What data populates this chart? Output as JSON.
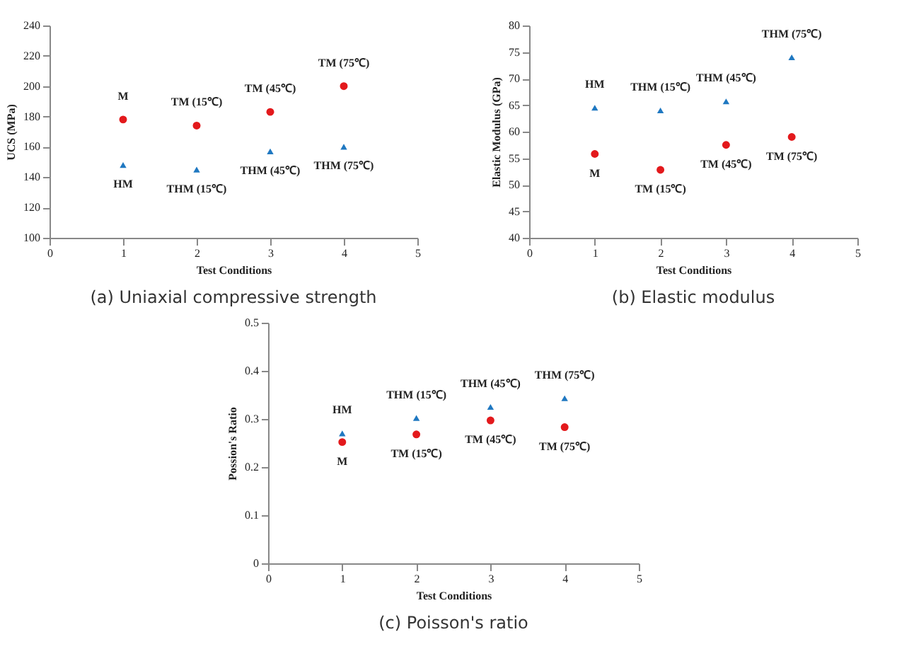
{
  "chart_data": [
    {
      "type": "scatter",
      "title": "(a) Uniaxial compressive strength",
      "xlabel": "Test Conditions",
      "ylabel": "UCS (MPa)",
      "x": [
        1,
        2,
        3,
        4
      ],
      "xlim": [
        0,
        5
      ],
      "xticks": [
        0,
        1,
        2,
        3,
        4,
        5
      ],
      "ylim": [
        100,
        240
      ],
      "yticks": [
        100,
        120,
        140,
        160,
        180,
        200,
        220,
        240
      ],
      "grid": false,
      "series": [
        {
          "color": "#e3191c",
          "marker": "circle",
          "values": [
            178,
            174,
            183,
            200
          ]
        },
        {
          "color": "#1f78c1",
          "marker": "triangle",
          "values": [
            148,
            145,
            157,
            160
          ]
        }
      ],
      "annotations": [
        {
          "text": "M",
          "x": 1,
          "y": 178
        },
        {
          "text": "TM (15℃)",
          "x": 2,
          "y": 174
        },
        {
          "text": "TM (45℃)",
          "x": 3,
          "y": 183
        },
        {
          "text": "TM (75℃)",
          "x": 4,
          "y": 200
        },
        {
          "text": "HM",
          "x": 1,
          "y": 148
        },
        {
          "text": "THM (15℃)",
          "x": 2,
          "y": 145
        },
        {
          "text": "THM (45℃)",
          "x": 3,
          "y": 157
        },
        {
          "text": "THM (75℃)",
          "x": 4,
          "y": 160
        }
      ]
    },
    {
      "type": "scatter",
      "title": "(b) Elastic modulus",
      "xlabel": "Test Conditions",
      "ylabel": "Elastic Modulus (GPa)",
      "x": [
        1,
        2,
        3,
        4
      ],
      "xlim": [
        0,
        5
      ],
      "xticks": [
        0,
        1,
        2,
        3,
        4,
        5
      ],
      "ylim": [
        40,
        80
      ],
      "yticks": [
        40,
        45,
        50,
        55,
        60,
        65,
        70,
        75,
        80
      ],
      "grid": false,
      "series": [
        {
          "color": "#e3191c",
          "marker": "circle",
          "values": [
            55.8,
            52.8,
            57.5,
            59
          ]
        },
        {
          "color": "#1f78c1",
          "marker": "triangle",
          "values": [
            64.5,
            64,
            65.7,
            74
          ]
        }
      ],
      "annotations": [
        {
          "text": "M",
          "x": 1,
          "y": 55.8
        },
        {
          "text": "TM (15℃)",
          "x": 2,
          "y": 52.8
        },
        {
          "text": "TM (45℃)",
          "x": 3,
          "y": 57.5
        },
        {
          "text": "TM (75℃)",
          "x": 4,
          "y": 59
        },
        {
          "text": "HM",
          "x": 1,
          "y": 64.5
        },
        {
          "text": "THM (15℃)",
          "x": 2,
          "y": 64
        },
        {
          "text": "THM (45℃)",
          "x": 3,
          "y": 65.7
        },
        {
          "text": "THM (75℃)",
          "x": 4,
          "y": 74
        }
      ]
    },
    {
      "type": "scatter",
      "title": "(c) Poisson's ratio",
      "xlabel": "Test Conditions",
      "ylabel": "Possion's Ratio",
      "x": [
        1,
        2,
        3,
        4
      ],
      "xlim": [
        0,
        5
      ],
      "xticks": [
        0,
        1,
        2,
        3,
        4,
        5
      ],
      "ylim": [
        0,
        0.5
      ],
      "yticks": [
        0,
        0.1,
        0.2,
        0.3,
        0.4,
        0.5
      ],
      "grid": false,
      "series": [
        {
          "color": "#e3191c",
          "marker": "circle",
          "values": [
            0.252,
            0.268,
            0.297,
            0.283
          ]
        },
        {
          "color": "#1f78c1",
          "marker": "triangle",
          "values": [
            0.27,
            0.302,
            0.325,
            0.343
          ]
        }
      ],
      "annotations": [
        {
          "text": "M",
          "x": 1,
          "y": 0.252
        },
        {
          "text": "TM (15℃)",
          "x": 2,
          "y": 0.268
        },
        {
          "text": "TM (45℃)",
          "x": 3,
          "y": 0.297
        },
        {
          "text": "TM (75℃)",
          "x": 4,
          "y": 0.283
        },
        {
          "text": "HM",
          "x": 1,
          "y": 0.27
        },
        {
          "text": "THM (15℃)",
          "x": 2,
          "y": 0.302
        },
        {
          "text": "THM (45℃)",
          "x": 3,
          "y": 0.325
        },
        {
          "text": "THM (75℃)",
          "x": 4,
          "y": 0.343
        }
      ]
    }
  ]
}
